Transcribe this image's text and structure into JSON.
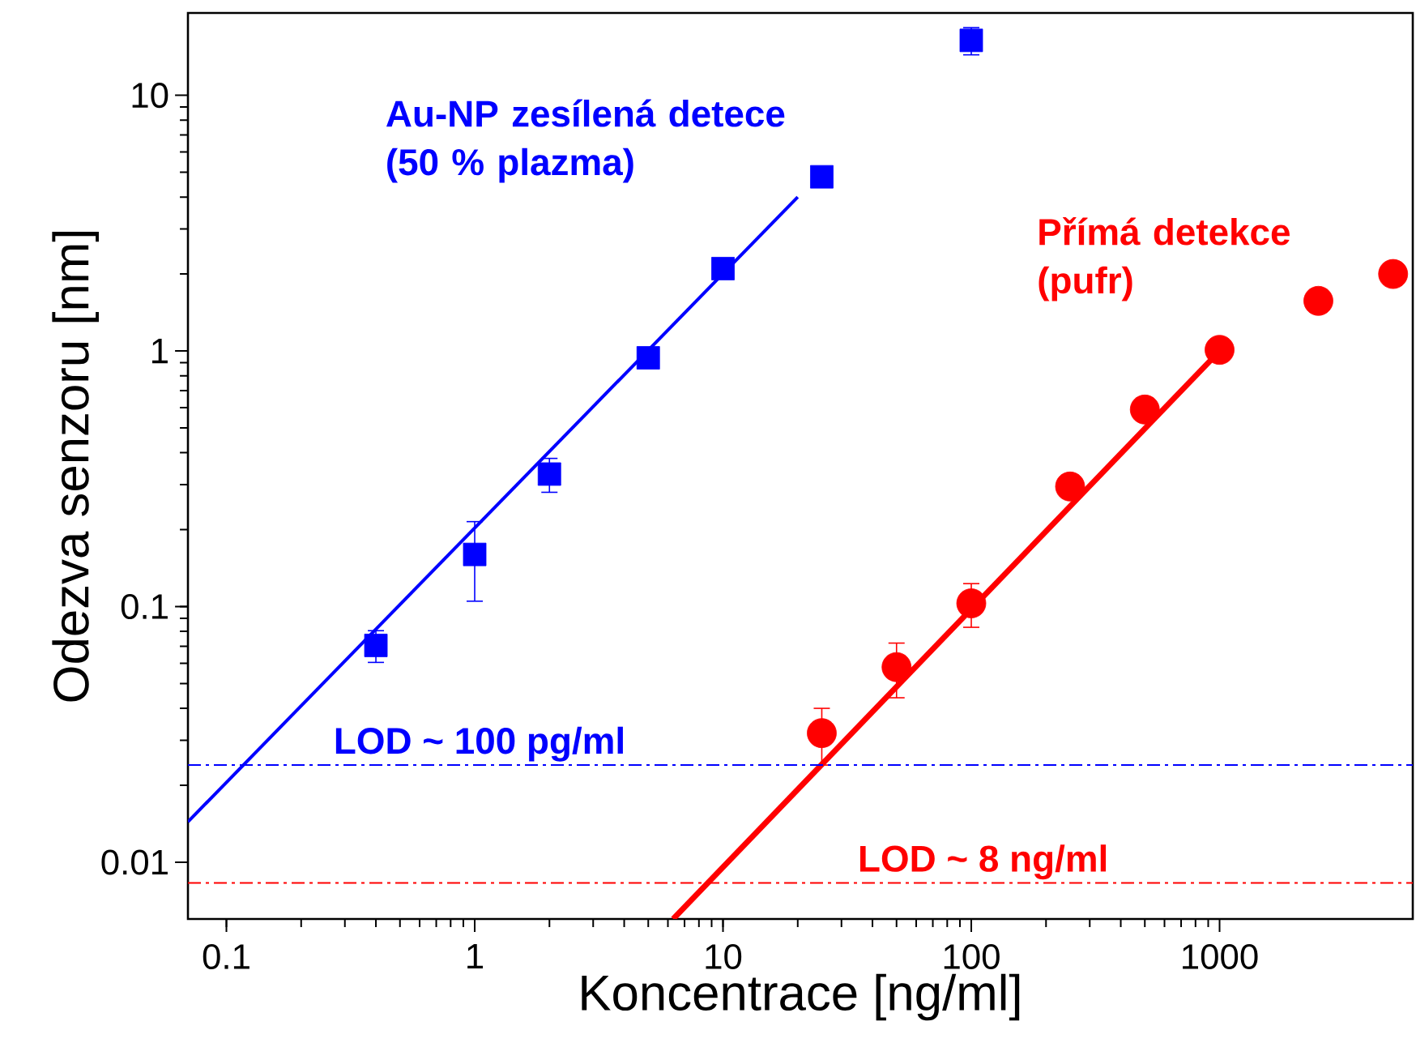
{
  "chart_data": {
    "type": "scatter",
    "xlabel": "Koncentrace [ng/ml]",
    "ylabel": "Odezva senzoru [nm]",
    "log": "xy",
    "grid": false,
    "xlim": [
      0.07,
      6000
    ],
    "ylim": [
      0.006,
      21
    ],
    "xticks": [
      0.1,
      1,
      10,
      100,
      1000
    ],
    "yticks": [
      0.01,
      0.1,
      1,
      10
    ],
    "series": [
      {
        "name": "Au-NP zesílená detece (50 % plazma)",
        "color": "#0000ff",
        "marker": "square",
        "x": [
          0.4,
          1,
          2,
          5,
          10,
          25,
          100
        ],
        "values": [
          0.0705,
          0.16,
          0.33,
          0.94,
          2.1,
          4.8,
          16.4
        ],
        "errors": [
          0.01,
          0.055,
          0.05,
          null,
          null,
          null,
          2
        ]
      },
      {
        "type": "line",
        "color": "#0000ff",
        "x": [
          0.07,
          20
        ],
        "values": [
          0.0144,
          4.0
        ]
      },
      {
        "name": "Přímá detekce (pufr)",
        "color": "#ff0000",
        "marker": "circle",
        "x": [
          25,
          50,
          100,
          250,
          500,
          1000,
          2500,
          5000
        ],
        "values": [
          0.032,
          0.058,
          0.103,
          0.295,
          0.59,
          1.01,
          1.57,
          2.0
        ],
        "errors": [
          0.008,
          0.014,
          0.02,
          null,
          null,
          null,
          null,
          null
        ]
      },
      {
        "type": "line",
        "color": "#ff0000",
        "x": [
          6.3,
          1000
        ],
        "values": [
          0.006,
          1.0
        ]
      }
    ],
    "ref_lines": [
      {
        "axis": "y",
        "value": 0.024,
        "label": "LOD ~ 100 pg/ml",
        "color": "#0000ff"
      },
      {
        "axis": "y",
        "value": 0.0083,
        "label": "LOD ~ 8 ng/ml",
        "color": "#ff0000"
      }
    ]
  }
}
